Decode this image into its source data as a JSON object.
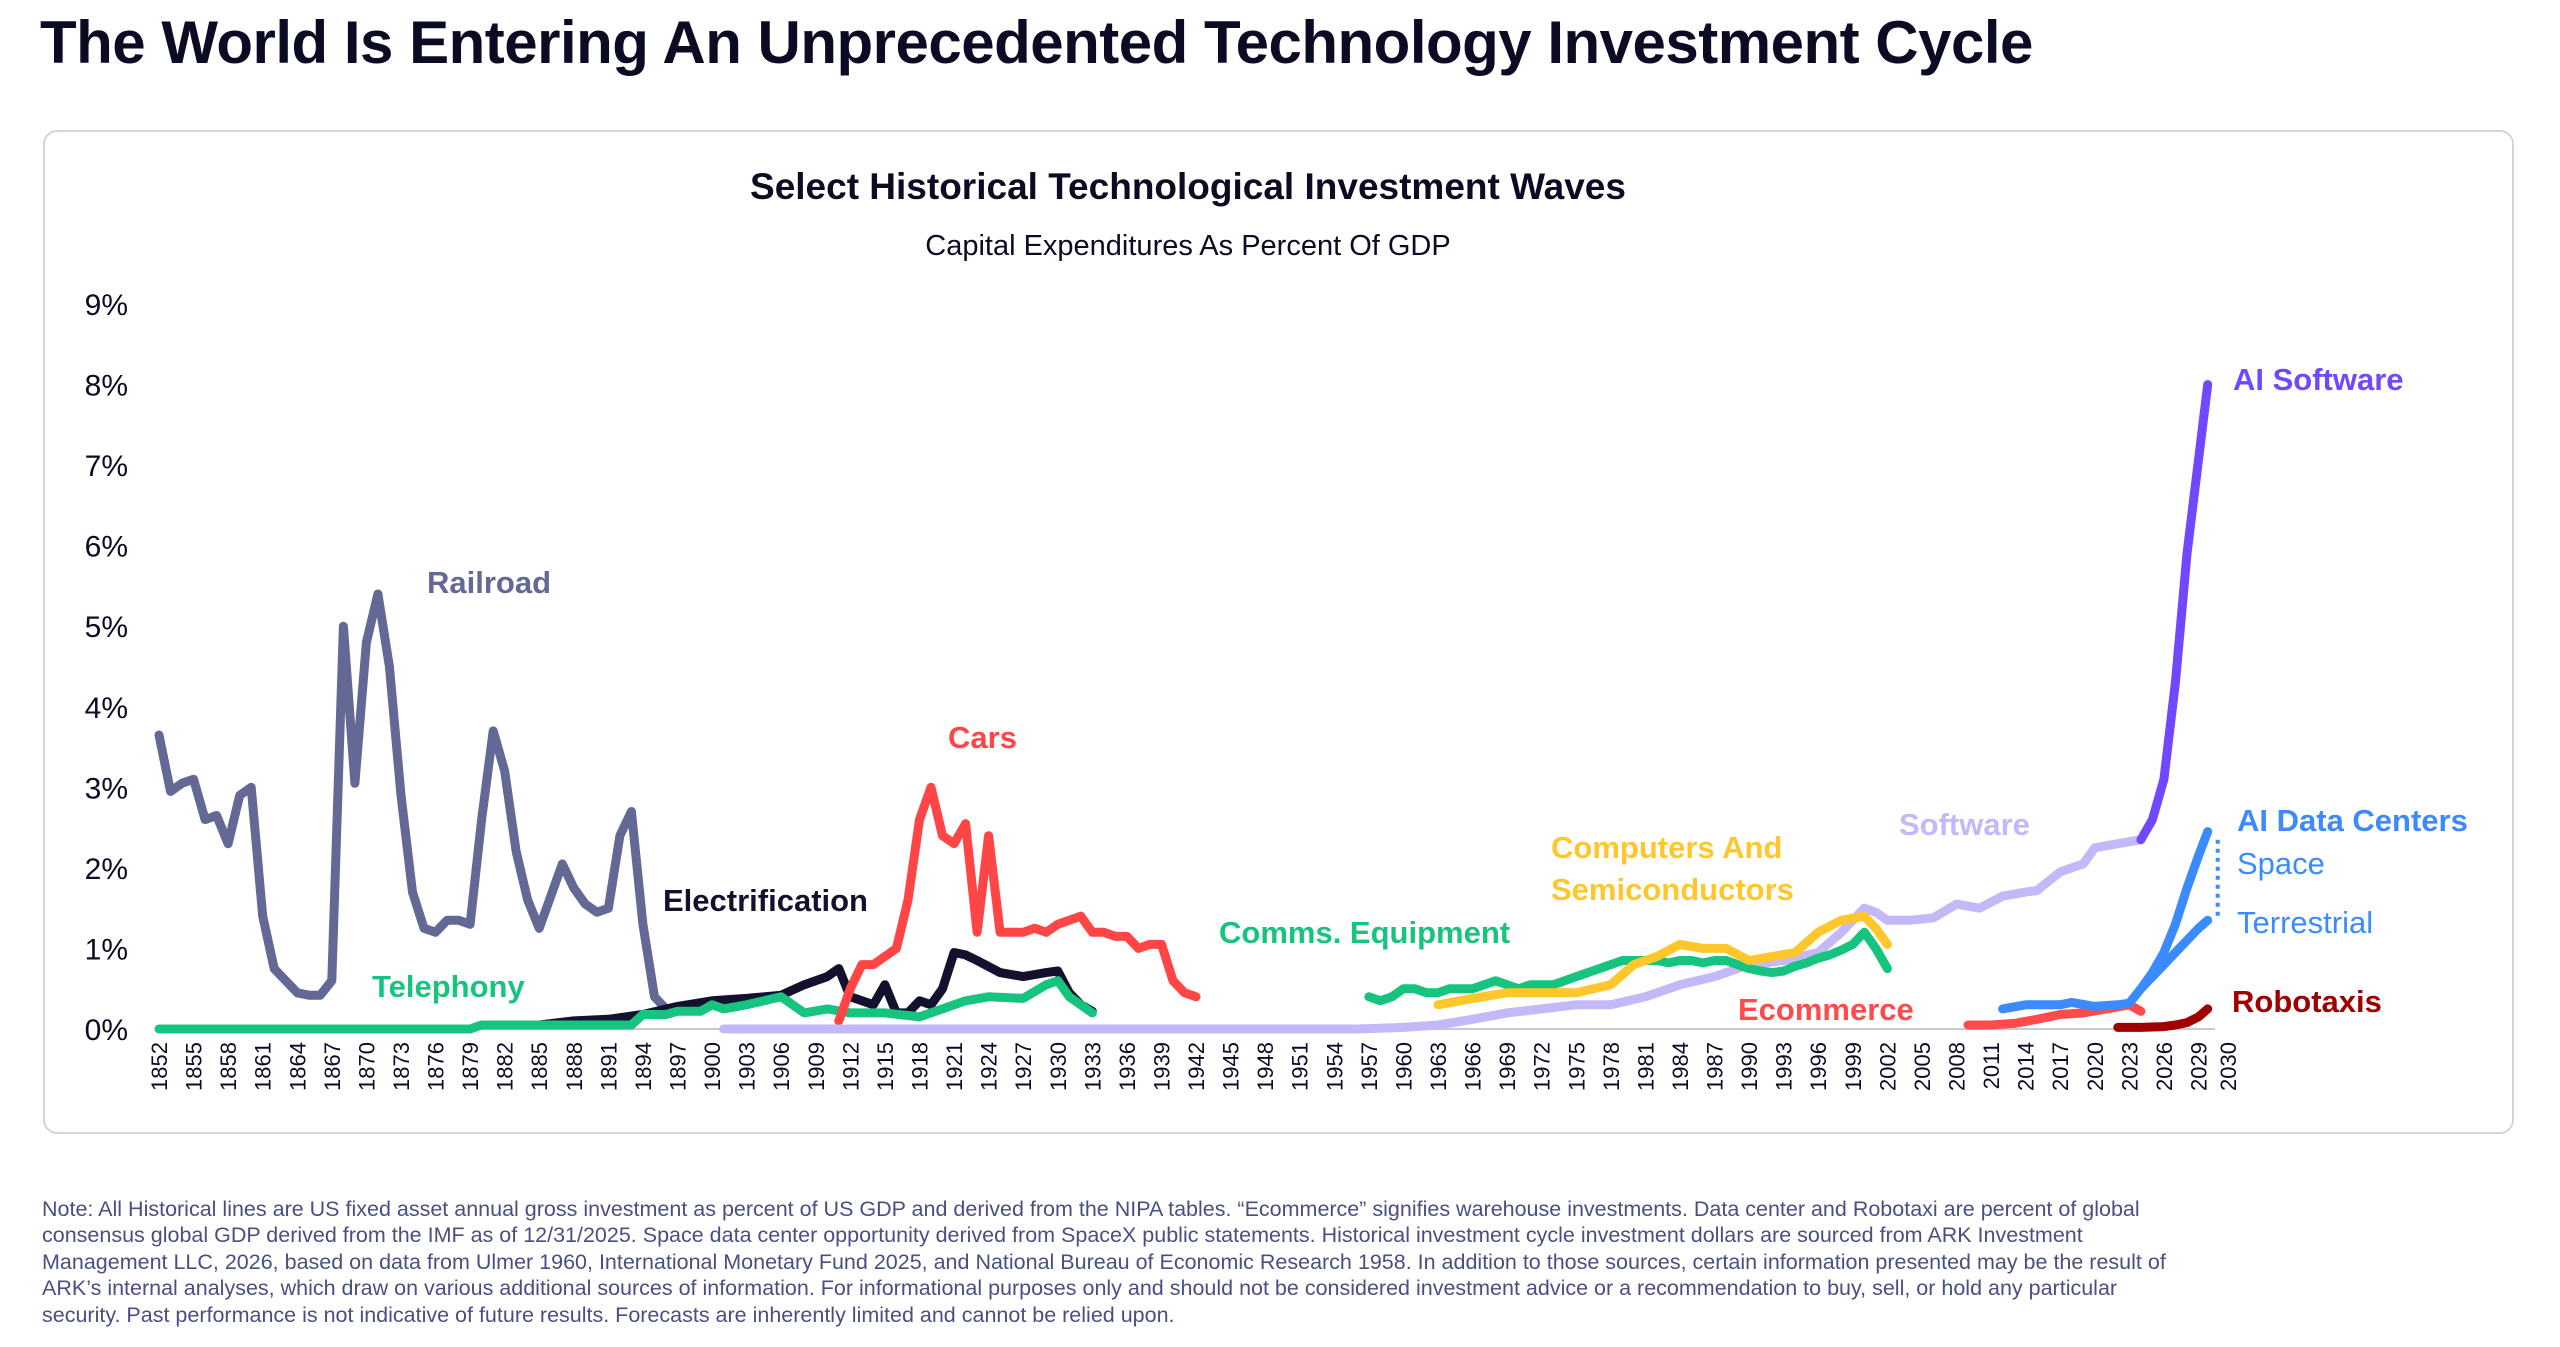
{
  "page_title": "The World Is Entering An Unprecedented Technology Investment Cycle",
  "chart_data": {
    "type": "line",
    "title": "Select Historical Technological Investment Waves",
    "subtitle": "Capital Expenditures As Percent Of GDP",
    "xlabel": "",
    "ylabel": "",
    "ylim": [
      0,
      9
    ],
    "xlim": [
      1852,
      2030
    ],
    "y_ticks": [
      "0%",
      "1%",
      "2%",
      "3%",
      "4%",
      "5%",
      "6%",
      "7%",
      "8%",
      "9%"
    ],
    "x_ticks": [
      "1852",
      "1855",
      "1858",
      "1861",
      "1864",
      "1867",
      "1870",
      "1873",
      "1876",
      "1879",
      "1882",
      "1885",
      "1888",
      "1891",
      "1894",
      "1897",
      "1900",
      "1903",
      "1906",
      "1909",
      "1912",
      "1915",
      "1918",
      "1921",
      "1924",
      "1927",
      "1930",
      "1933",
      "1936",
      "1939",
      "1942",
      "1945",
      "1948",
      "1951",
      "1954",
      "1957",
      "1960",
      "1963",
      "1966",
      "1969",
      "1972",
      "1975",
      "1978",
      "1981",
      "1984",
      "1987",
      "1990",
      "1993",
      "1996",
      "1999",
      "2002",
      "2005",
      "2008",
      "2011",
      "2014",
      "2017",
      "2020",
      "2023",
      "2026",
      "2029",
      "2030"
    ],
    "grid": false,
    "legend": "inline labels",
    "series": [
      {
        "name": "Railroad",
        "color": "#636994",
        "x": [
          1852,
          1853,
          1854,
          1855,
          1856,
          1857,
          1858,
          1859,
          1860,
          1861,
          1862,
          1863,
          1864,
          1865,
          1866,
          1867,
          1868,
          1869,
          1870,
          1871,
          1872,
          1873,
          1874,
          1875,
          1876,
          1877,
          1878,
          1879,
          1880,
          1881,
          1882,
          1883,
          1884,
          1885,
          1886,
          1887,
          1888,
          1889,
          1890,
          1891,
          1892,
          1893,
          1894,
          1895,
          1896,
          1897
        ],
        "y": [
          3.65,
          2.95,
          3.05,
          3.1,
          2.6,
          2.65,
          2.3,
          2.9,
          3.0,
          1.4,
          0.75,
          0.6,
          0.45,
          0.42,
          0.42,
          0.6,
          5.0,
          3.05,
          4.8,
          5.4,
          4.5,
          2.9,
          1.7,
          1.25,
          1.2,
          1.35,
          1.35,
          1.3,
          2.6,
          3.7,
          3.2,
          2.2,
          1.6,
          1.25,
          1.65,
          2.05,
          1.75,
          1.55,
          1.45,
          1.5,
          2.4,
          2.7,
          1.3,
          0.4,
          0.25,
          0.22
        ]
      },
      {
        "name": "Electrification",
        "color": "#12122e",
        "x": [
          1885,
          1888,
          1891,
          1894,
          1897,
          1900,
          1903,
          1906,
          1908,
          1910,
          1911,
          1912,
          1913,
          1914,
          1915,
          1916,
          1917,
          1918,
          1919,
          1920,
          1921,
          1922,
          1923,
          1925,
          1927,
          1929,
          1930,
          1931,
          1932,
          1933
        ],
        "y": [
          0.05,
          0.1,
          0.12,
          0.18,
          0.28,
          0.35,
          0.38,
          0.42,
          0.55,
          0.65,
          0.75,
          0.4,
          0.35,
          0.3,
          0.55,
          0.2,
          0.2,
          0.35,
          0.3,
          0.5,
          0.95,
          0.92,
          0.85,
          0.7,
          0.65,
          0.7,
          0.72,
          0.45,
          0.3,
          0.22
        ]
      },
      {
        "name": "Telephony",
        "color": "#17c47f",
        "x": [
          1852,
          1879,
          1880,
          1885,
          1888,
          1893,
          1894,
          1896,
          1897,
          1899,
          1900,
          1901,
          1903,
          1906,
          1908,
          1910,
          1912,
          1915,
          1918,
          1920,
          1922,
          1924,
          1927,
          1929,
          1930,
          1931,
          1933
        ],
        "y": [
          0,
          0,
          0.05,
          0.05,
          0.05,
          0.05,
          0.18,
          0.18,
          0.22,
          0.22,
          0.3,
          0.25,
          0.3,
          0.4,
          0.2,
          0.25,
          0.2,
          0.2,
          0.15,
          0.25,
          0.35,
          0.4,
          0.38,
          0.55,
          0.6,
          0.4,
          0.2
        ]
      },
      {
        "name": "Cars",
        "color": "#ff4545",
        "x": [
          1911,
          1912,
          1913,
          1914,
          1915,
          1916,
          1917,
          1918,
          1919,
          1920,
          1921,
          1922,
          1923,
          1924,
          1925,
          1926,
          1927,
          1928,
          1929,
          1930,
          1931,
          1932,
          1933,
          1934,
          1935,
          1936,
          1937,
          1938,
          1939,
          1940,
          1941,
          1942
        ],
        "y": [
          0.1,
          0.5,
          0.8,
          0.8,
          0.9,
          1.0,
          1.6,
          2.6,
          3.0,
          2.4,
          2.3,
          2.55,
          1.2,
          2.4,
          1.2,
          1.2,
          1.2,
          1.25,
          1.2,
          1.3,
          1.35,
          1.4,
          1.2,
          1.2,
          1.15,
          1.15,
          1.0,
          1.05,
          1.05,
          0.6,
          0.45,
          0.4
        ]
      },
      {
        "name": "Software",
        "color": "#c4b8f8",
        "x": [
          1901,
          1956,
          1960,
          1963,
          1966,
          1969,
          1972,
          1975,
          1978,
          1981,
          1984,
          1987,
          1990,
          1993,
          1996,
          1998,
          2000,
          2001,
          2002,
          2004,
          2006,
          2008,
          2010,
          2012,
          2014,
          2015,
          2017,
          2019,
          2020,
          2022,
          2024
        ],
        "y": [
          0,
          0,
          0.02,
          0.05,
          0.12,
          0.2,
          0.25,
          0.3,
          0.3,
          0.4,
          0.55,
          0.65,
          0.8,
          0.85,
          0.95,
          1.2,
          1.5,
          1.45,
          1.35,
          1.35,
          1.38,
          1.55,
          1.5,
          1.65,
          1.7,
          1.72,
          1.95,
          2.05,
          2.25,
          2.3,
          2.35
        ]
      },
      {
        "name": "Comms. Equipment",
        "color": "#17c47f",
        "x": [
          1957,
          1958,
          1959,
          1960,
          1961,
          1962,
          1963,
          1964,
          1965,
          1966,
          1967,
          1968,
          1969,
          1970,
          1971,
          1972,
          1973,
          1974,
          1975,
          1976,
          1977,
          1978,
          1979,
          1980,
          1981,
          1982,
          1983,
          1984,
          1985,
          1986,
          1987,
          1988,
          1989,
          1990,
          1991,
          1992,
          1993,
          1994,
          1995,
          1996,
          1997,
          1998,
          1999,
          2000,
          2001,
          2002
        ],
        "y": [
          0.4,
          0.35,
          0.4,
          0.5,
          0.5,
          0.45,
          0.45,
          0.5,
          0.5,
          0.5,
          0.55,
          0.6,
          0.55,
          0.5,
          0.55,
          0.55,
          0.55,
          0.6,
          0.65,
          0.7,
          0.75,
          0.8,
          0.85,
          0.85,
          0.85,
          0.85,
          0.82,
          0.85,
          0.85,
          0.82,
          0.85,
          0.85,
          0.8,
          0.75,
          0.72,
          0.7,
          0.72,
          0.78,
          0.82,
          0.88,
          0.92,
          0.98,
          1.05,
          1.2,
          1.0,
          0.75
        ]
      },
      {
        "name": "Computers And Semiconductors",
        "color": "#ffc72c",
        "x": [
          1963,
          1966,
          1969,
          1972,
          1975,
          1978,
          1980,
          1982,
          1984,
          1986,
          1988,
          1990,
          1992,
          1994,
          1996,
          1998,
          2000,
          2001,
          2002
        ],
        "y": [
          0.3,
          0.38,
          0.45,
          0.45,
          0.45,
          0.55,
          0.8,
          0.9,
          1.05,
          1.0,
          1.0,
          0.85,
          0.9,
          0.95,
          1.2,
          1.35,
          1.4,
          1.25,
          1.05
        ]
      },
      {
        "name": "Ecommerce",
        "color": "#ff4b4b",
        "x": [
          2009,
          2011,
          2013,
          2015,
          2017,
          2019,
          2021,
          2023,
          2024
        ],
        "y": [
          0.05,
          0.05,
          0.07,
          0.12,
          0.18,
          0.2,
          0.25,
          0.3,
          0.22
        ]
      },
      {
        "name": "AI Software",
        "color": "#6f48ff",
        "x": [
          2024,
          2025,
          2026,
          2027,
          2028,
          2029.8
        ],
        "y": [
          2.35,
          2.6,
          3.1,
          4.3,
          5.9,
          8.0
        ]
      },
      {
        "name": "AI Data Centers",
        "sublabel": "Space",
        "color": "#3b8bff",
        "x": [
          2012,
          2014,
          2016,
          2017,
          2018,
          2020,
          2022,
          2023,
          2024,
          2025,
          2026,
          2027,
          2028,
          2029,
          2029.8
        ],
        "y": [
          0.25,
          0.3,
          0.3,
          0.3,
          0.33,
          0.28,
          0.3,
          0.32,
          0.5,
          0.7,
          0.95,
          1.3,
          1.75,
          2.15,
          2.45
        ]
      },
      {
        "name": "Terrestrial",
        "color": "#3b8bff",
        "x": [
          2024,
          2025,
          2026,
          2027,
          2028,
          2029,
          2029.8
        ],
        "y": [
          0.5,
          0.65,
          0.8,
          0.95,
          1.1,
          1.25,
          1.35
        ]
      },
      {
        "name": "Robotaxis",
        "color": "#a00000",
        "x": [
          2022,
          2024,
          2026,
          2027,
          2028,
          2029,
          2029.8
        ],
        "y": [
          0.02,
          0.02,
          0.03,
          0.05,
          0.08,
          0.15,
          0.25
        ]
      }
    ]
  },
  "note_lines": [
    "Note: All Historical lines are US fixed asset annual gross investment as percent of US GDP and derived from the NIPA tables. “Ecommerce” signifies warehouse investments. Data center and Robotaxi are percent of global",
    "consensus global GDP derived from the IMF as of 12/31/2025. Space data center opportunity derived from SpaceX public statements. Historical investment cycle investment dollars are sourced from ARK Investment",
    "Management LLC, 2026, based on data from Ulmer 1960, International Monetary Fund 2025, and National Bureau of Economic Research 1958. In addition to those sources, certain information presented may be the result of",
    "ARK’s internal analyses, which draw on various additional sources of information. For informational purposes only and should not be considered investment advice or a recommendation to buy, sell, or hold any particular",
    "security. Past performance is not indicative of future results. Forecasts are inherently limited and cannot be relied upon."
  ]
}
